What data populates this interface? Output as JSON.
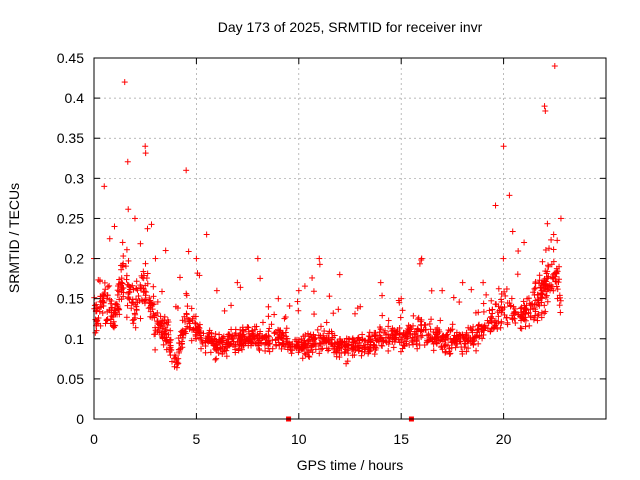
{
  "chart_data": {
    "type": "scatter",
    "title": "Day 173 of 2025, SRMTID for receiver invr",
    "xlabel": "GPS time / hours",
    "ylabel": "SRMTID / TECUs",
    "xlim": [
      0,
      25
    ],
    "ylim": [
      0,
      0.45
    ],
    "x_ticks": [
      "0",
      "5",
      "10",
      "15",
      "20"
    ],
    "x_tick_values": [
      0,
      5,
      10,
      15,
      20
    ],
    "y_ticks": [
      "0",
      "0.05",
      "0.1",
      "0.15",
      "0.2",
      "0.25",
      "0.3",
      "0.35",
      "0.4",
      "0.45"
    ],
    "y_tick_values": [
      0,
      0.05,
      0.1,
      0.15,
      0.2,
      0.25,
      0.3,
      0.35,
      0.4,
      0.45
    ],
    "grid": true,
    "marker": "plus",
    "series_color": "#ff0000",
    "axis_markers": [
      {
        "x": 9.5,
        "y": 0
      },
      {
        "x": 15.5,
        "y": 0
      }
    ],
    "envelope": [
      {
        "x": 0.0,
        "mean": 0.13,
        "spread": 0.05,
        "max": 0.2
      },
      {
        "x": 0.5,
        "mean": 0.15,
        "spread": 0.06,
        "max": 0.29
      },
      {
        "x": 1.0,
        "mean": 0.13,
        "spread": 0.05,
        "max": 0.24
      },
      {
        "x": 1.5,
        "mean": 0.18,
        "spread": 0.08,
        "max": 0.42
      },
      {
        "x": 2.0,
        "mean": 0.14,
        "spread": 0.06,
        "max": 0.25
      },
      {
        "x": 2.5,
        "mean": 0.17,
        "spread": 0.07,
        "max": 0.34
      },
      {
        "x": 3.0,
        "mean": 0.12,
        "spread": 0.05,
        "max": 0.2
      },
      {
        "x": 3.5,
        "mean": 0.11,
        "spread": 0.05,
        "max": 0.21
      },
      {
        "x": 4.0,
        "mean": 0.07,
        "spread": 0.03,
        "max": 0.14
      },
      {
        "x": 4.5,
        "mean": 0.13,
        "spread": 0.06,
        "max": 0.31
      },
      {
        "x": 5.0,
        "mean": 0.11,
        "spread": 0.04,
        "max": 0.2
      },
      {
        "x": 5.5,
        "mean": 0.1,
        "spread": 0.04,
        "max": 0.23
      },
      {
        "x": 6.0,
        "mean": 0.09,
        "spread": 0.03,
        "max": 0.16
      },
      {
        "x": 7.0,
        "mean": 0.1,
        "spread": 0.035,
        "max": 0.17
      },
      {
        "x": 8.0,
        "mean": 0.1,
        "spread": 0.035,
        "max": 0.2
      },
      {
        "x": 9.0,
        "mean": 0.1,
        "spread": 0.03,
        "max": 0.15
      },
      {
        "x": 10.0,
        "mean": 0.09,
        "spread": 0.03,
        "max": 0.16
      },
      {
        "x": 11.0,
        "mean": 0.1,
        "spread": 0.035,
        "max": 0.2
      },
      {
        "x": 12.0,
        "mean": 0.09,
        "spread": 0.03,
        "max": 0.18
      },
      {
        "x": 13.0,
        "mean": 0.09,
        "spread": 0.03,
        "max": 0.14
      },
      {
        "x": 14.0,
        "mean": 0.1,
        "spread": 0.035,
        "max": 0.17
      },
      {
        "x": 15.0,
        "mean": 0.1,
        "spread": 0.03,
        "max": 0.15
      },
      {
        "x": 16.0,
        "mean": 0.11,
        "spread": 0.04,
        "max": 0.2
      },
      {
        "x": 17.0,
        "mean": 0.1,
        "spread": 0.035,
        "max": 0.16
      },
      {
        "x": 18.0,
        "mean": 0.1,
        "spread": 0.035,
        "max": 0.17
      },
      {
        "x": 19.0,
        "mean": 0.11,
        "spread": 0.04,
        "max": 0.17
      },
      {
        "x": 20.0,
        "mean": 0.14,
        "spread": 0.05,
        "max": 0.34
      },
      {
        "x": 21.0,
        "mean": 0.13,
        "spread": 0.05,
        "max": 0.22
      },
      {
        "x": 22.0,
        "mean": 0.16,
        "spread": 0.07,
        "max": 0.39
      },
      {
        "x": 22.5,
        "mean": 0.18,
        "spread": 0.08,
        "max": 0.44
      },
      {
        "x": 22.8,
        "mean": 0.14,
        "spread": 0.05,
        "max": 0.25
      }
    ],
    "point_count": 1500
  }
}
